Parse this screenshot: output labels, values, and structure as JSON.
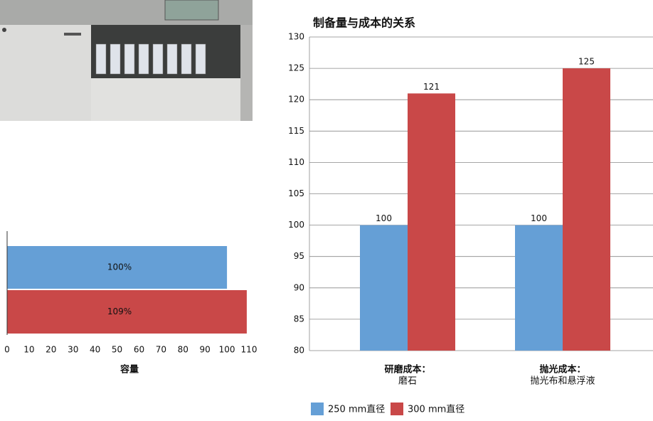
{
  "chart_data": [
    {
      "type": "bar",
      "orientation": "horizontal",
      "categories": [
        null,
        null
      ],
      "values": [
        100,
        109
      ],
      "value_labels": [
        "100%",
        "109%"
      ],
      "colors": [
        "#659fd6",
        "#c94848"
      ],
      "x_label": "容量",
      "xlim": [
        0,
        110
      ],
      "xticks": [
        0,
        10,
        20,
        30,
        40,
        50,
        60,
        70,
        80,
        90,
        100,
        110
      ]
    },
    {
      "type": "bar",
      "orientation": "vertical",
      "title": "制备量与成本的关系",
      "categories": [
        [
          "研磨成本：",
          "磨石"
        ],
        [
          "抛光成本：",
          "抛光布和悬浮液"
        ]
      ],
      "series": [
        {
          "name": "250 mm直径",
          "color": "#659fd6",
          "values": [
            100,
            100
          ]
        },
        {
          "name": "300 mm直径",
          "color": "#c94848",
          "values": [
            121,
            125
          ]
        }
      ],
      "ylim": [
        80,
        130
      ],
      "yticks": [
        80,
        85,
        90,
        95,
        100,
        105,
        110,
        115,
        120,
        125,
        130
      ],
      "grid": true,
      "legend": "bottom"
    }
  ]
}
